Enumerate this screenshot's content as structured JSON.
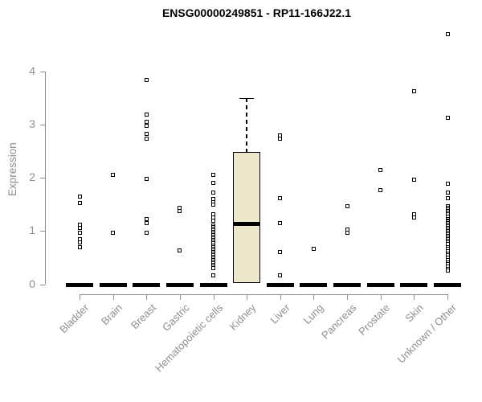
{
  "chart_data": {
    "type": "box",
    "title": "ENSG00000249851 - RP11-166J22.1",
    "ylabel": "Expression",
    "yticks": [
      0,
      1,
      2,
      3,
      4
    ],
    "ylim": [
      0,
      4.8
    ],
    "axis_color": "#8f8f8f",
    "box_fill": "#EDE7CC",
    "point_color": "#000000",
    "legend": "none",
    "grid": "off",
    "groups": [
      {
        "label": "Bladder",
        "box": {
          "median": 0
        },
        "points": [
          1.65,
          1.53,
          1.11,
          1.05,
          0.97,
          0.85,
          0.78,
          0.69
        ]
      },
      {
        "label": "Brain",
        "box": {
          "median": 0
        },
        "points": [
          2.05,
          0.97
        ]
      },
      {
        "label": "Breast",
        "box": {
          "median": 0
        },
        "points": [
          3.83,
          3.18,
          3.05,
          2.97,
          2.82,
          2.74,
          1.98,
          1.22,
          1.14,
          0.96
        ]
      },
      {
        "label": "Gastric",
        "box": {
          "median": 0
        },
        "points": [
          1.43,
          1.37,
          0.64
        ]
      },
      {
        "label": "Hematopoietic cells",
        "box": {
          "median": 0
        },
        "points": [
          2.06,
          1.9,
          1.72,
          1.6,
          1.54,
          1.49,
          1.31,
          1.25,
          1.19,
          1.1,
          1.07,
          1.04,
          1.01,
          0.98,
          0.95,
          0.92,
          0.89,
          0.86,
          0.83,
          0.8,
          0.77,
          0.72,
          0.69,
          0.66,
          0.63,
          0.6,
          0.57,
          0.54,
          0.51,
          0.48,
          0.45,
          0.42,
          0.39,
          0.36,
          0.33,
          0.3,
          0.17
        ]
      },
      {
        "label": "Kidney",
        "box": {
          "q1": 0.02,
          "median": 1.13,
          "q3": 2.49,
          "whisker_high": 3.5
        },
        "points": []
      },
      {
        "label": "Liver",
        "box": {
          "median": 0
        },
        "points": [
          2.8,
          2.73,
          1.61,
          1.14,
          0.6,
          0.16
        ]
      },
      {
        "label": "Lung",
        "box": {
          "median": 0
        },
        "points": [
          0.66
        ]
      },
      {
        "label": "Pancreas",
        "box": {
          "median": 0
        },
        "points": [
          1.47,
          1.03,
          0.96
        ]
      },
      {
        "label": "Prostate",
        "box": {
          "median": 0
        },
        "points": [
          2.15,
          1.76
        ]
      },
      {
        "label": "Skin",
        "box": {
          "median": 0
        },
        "points": [
          3.62,
          1.96,
          1.32,
          1.25
        ]
      },
      {
        "label": "Unknown / Other",
        "box": {
          "median": 0
        },
        "points": [
          4.7,
          3.12,
          1.88,
          1.72,
          1.61,
          1.47,
          1.44,
          1.41,
          1.38,
          1.35,
          1.31,
          1.27,
          1.23,
          1.2,
          1.17,
          1.14,
          1.11,
          1.08,
          1.05,
          1.02,
          0.99,
          0.96,
          0.93,
          0.9,
          0.87,
          0.84,
          0.81,
          0.78,
          0.75,
          0.7,
          0.66,
          0.62,
          0.58,
          0.54,
          0.5,
          0.46,
          0.41,
          0.37,
          0.33,
          0.29,
          0.25
        ]
      }
    ]
  }
}
